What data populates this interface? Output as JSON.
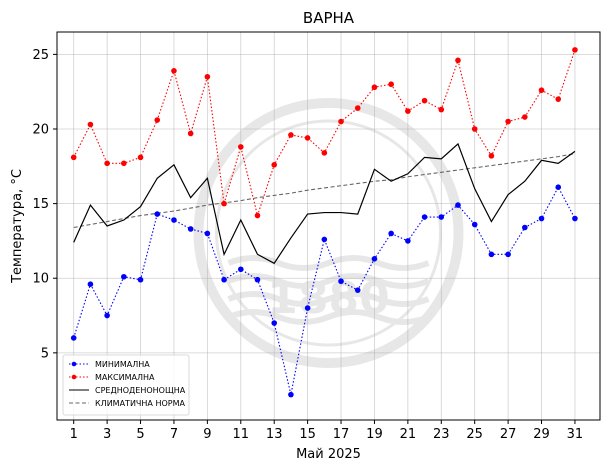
{
  "chart_data": {
    "type": "line",
    "title": "ВАРНА",
    "xlabel": "Май  2025",
    "ylabel": "Температура,  °C",
    "x": [
      1,
      2,
      3,
      4,
      5,
      6,
      7,
      8,
      9,
      10,
      11,
      12,
      13,
      14,
      15,
      16,
      17,
      18,
      19,
      20,
      21,
      22,
      23,
      24,
      25,
      26,
      27,
      28,
      29,
      30,
      31
    ],
    "xticks": [
      1,
      3,
      5,
      7,
      9,
      11,
      13,
      15,
      17,
      19,
      21,
      23,
      25,
      27,
      29,
      31
    ],
    "yticks": [
      5,
      10,
      15,
      20,
      25
    ],
    "xlim": [
      0.0,
      32.5
    ],
    "ylim": [
      0.5,
      26.5
    ],
    "grid": true,
    "legend_position": "lower-left",
    "watermark": "1880",
    "series": [
      {
        "name": "МИНИМАЛНА",
        "color": "#0000ff",
        "style": "dotted-markers",
        "values": [
          6.0,
          9.6,
          7.5,
          10.1,
          9.9,
          14.3,
          13.9,
          13.3,
          13.0,
          9.9,
          10.6,
          9.9,
          7.0,
          2.2,
          8.0,
          12.6,
          9.8,
          9.2,
          11.3,
          13.0,
          12.5,
          14.1,
          14.1,
          14.9,
          13.6,
          11.6,
          11.6,
          13.4,
          14.0,
          16.1,
          14.0
        ]
      },
      {
        "name": "МАКСИМАЛНА",
        "color": "#ff0000",
        "style": "dotted-markers",
        "values": [
          18.1,
          20.3,
          17.7,
          17.7,
          18.1,
          20.6,
          23.9,
          19.7,
          23.5,
          15.0,
          18.8,
          14.2,
          17.6,
          19.6,
          19.4,
          18.4,
          20.5,
          21.4,
          22.8,
          23.0,
          21.2,
          21.9,
          21.3,
          24.6,
          20.0,
          18.2,
          20.5,
          20.8,
          22.6,
          22.0,
          25.3
        ]
      },
      {
        "name": "СРЕДНОДЕНОНОЩНА",
        "color": "#000000",
        "style": "solid",
        "values": [
          12.4,
          14.9,
          13.5,
          13.9,
          14.8,
          16.7,
          17.6,
          15.4,
          16.7,
          11.6,
          13.9,
          11.6,
          11.0,
          12.7,
          14.3,
          14.4,
          14.4,
          14.3,
          17.3,
          16.5,
          17.0,
          18.1,
          18.0,
          19.0,
          16.0,
          13.8,
          15.6,
          16.5,
          17.9,
          17.7,
          18.5
        ]
      },
      {
        "name": "КЛИМАТИЧНА НОРМА",
        "color": "#666666",
        "style": "dashed",
        "values": [
          13.4,
          13.6,
          13.8,
          14.0,
          14.2,
          14.35,
          14.5,
          14.7,
          14.9,
          15.05,
          15.2,
          15.4,
          15.55,
          15.7,
          15.9,
          16.05,
          16.2,
          16.35,
          16.5,
          16.6,
          16.8,
          16.95,
          17.1,
          17.25,
          17.4,
          17.55,
          17.7,
          17.85,
          18.0,
          18.15,
          18.35
        ]
      }
    ]
  }
}
